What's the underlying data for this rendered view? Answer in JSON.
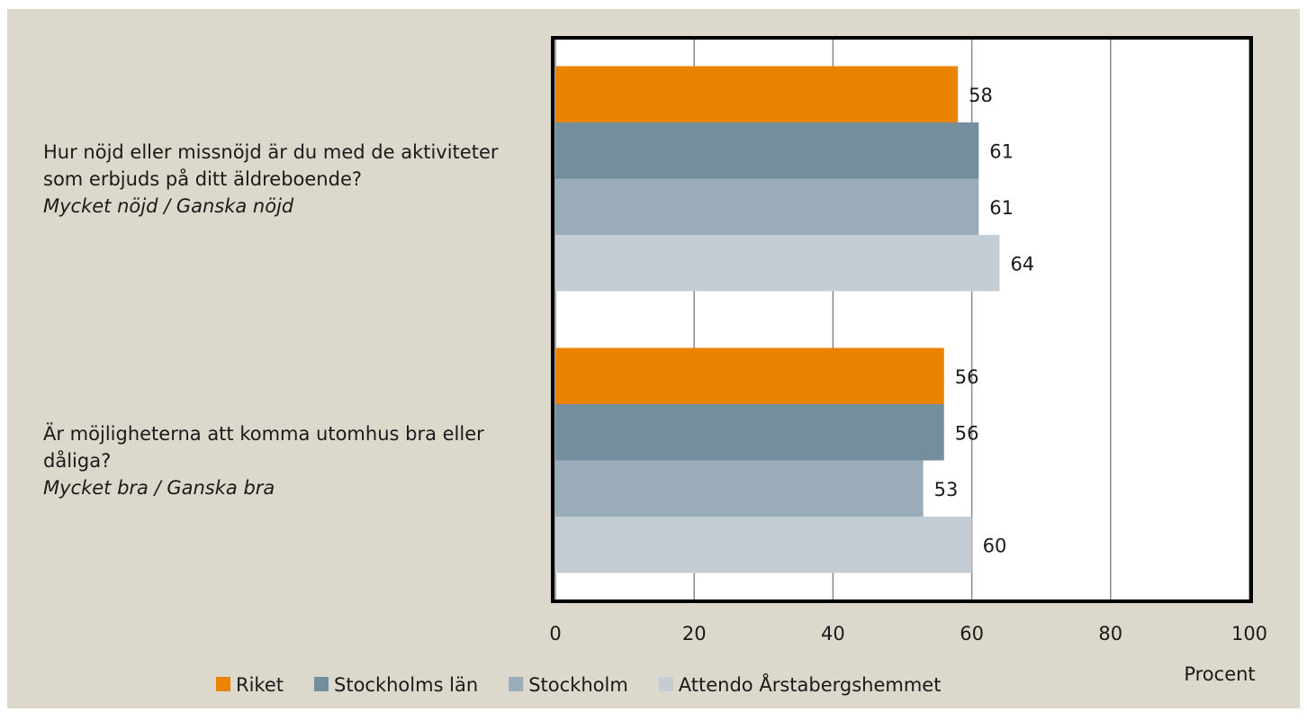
{
  "chart_data": {
    "type": "barh",
    "categories": [
      "Hur nöjd eller missnöjd är du med de aktiviteter som erbjuds på ditt äldreboende?",
      "Är möjligheterna att komma utomhus bra eller dåliga?"
    ],
    "category_notes": [
      "Mycket nöjd / Ganska nöjd",
      "Mycket bra / Ganska bra"
    ],
    "series": [
      {
        "name": "Riket",
        "color": "#e98300",
        "values": [
          58,
          56
        ]
      },
      {
        "name": "Stockholms län",
        "color": "#738f9e",
        "values": [
          61,
          56
        ]
      },
      {
        "name": "Stockholm",
        "color": "#9aacb7",
        "values": [
          61,
          53
        ]
      },
      {
        "name": "Attendo Årstabergshemmet",
        "color": "#c3cdd3",
        "values": [
          64,
          60
        ]
      }
    ],
    "xlabel": "Procent",
    "xlim": [
      0,
      100
    ],
    "xticks": [
      0,
      20,
      40,
      60,
      80,
      100
    ],
    "grid": true,
    "legend": "bottom"
  }
}
